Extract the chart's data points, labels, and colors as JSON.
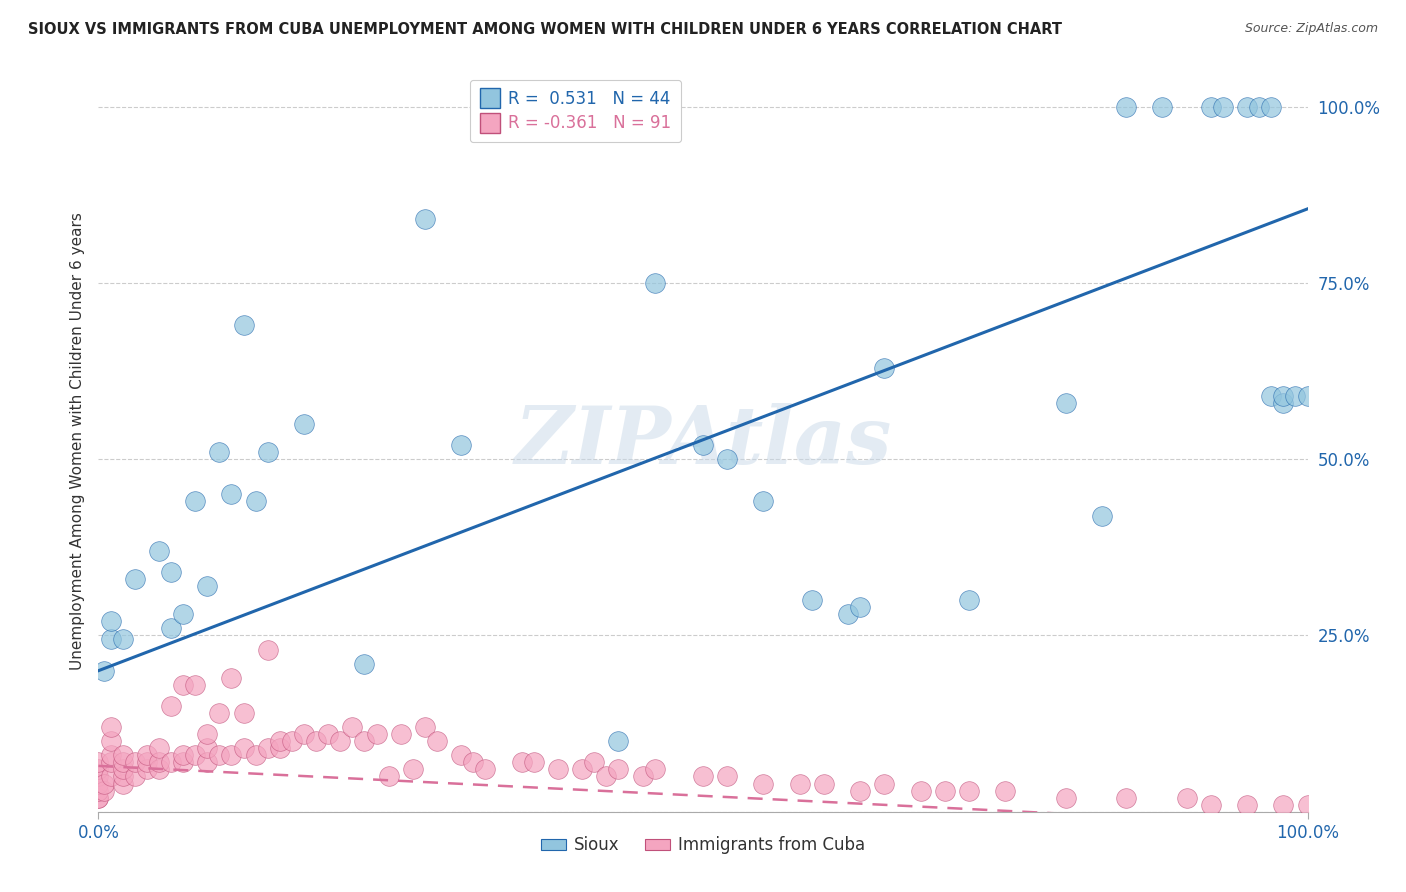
{
  "title": "SIOUX VS IMMIGRANTS FROM CUBA UNEMPLOYMENT AMONG WOMEN WITH CHILDREN UNDER 6 YEARS CORRELATION CHART",
  "source": "Source: ZipAtlas.com",
  "ylabel": "Unemployment Among Women with Children Under 6 years",
  "sioux_color": "#92c5de",
  "cuba_color": "#f4a5c0",
  "sioux_line_color": "#2166ac",
  "cuba_line_color": "#d9709a",
  "background_color": "#ffffff",
  "grid_color": "#cccccc",
  "watermark": "ZIPAtlas",
  "sioux_x": [
    0.005,
    0.01,
    0.01,
    0.02,
    0.03,
    0.05,
    0.06,
    0.06,
    0.07,
    0.08,
    0.09,
    0.1,
    0.11,
    0.12,
    0.13,
    0.14,
    0.17,
    0.22,
    0.27,
    0.3,
    0.43,
    0.46,
    0.5,
    0.52,
    0.55,
    0.59,
    0.62,
    0.63,
    0.65,
    0.72,
    0.8,
    0.83,
    0.85,
    0.88,
    0.92,
    0.93,
    0.95,
    0.96,
    0.97,
    0.97,
    0.98,
    0.98,
    0.99,
    1.0
  ],
  "sioux_y": [
    0.2,
    0.245,
    0.27,
    0.245,
    0.33,
    0.37,
    0.26,
    0.34,
    0.28,
    0.44,
    0.32,
    0.51,
    0.45,
    0.69,
    0.44,
    0.51,
    0.55,
    0.21,
    0.84,
    0.52,
    0.1,
    0.75,
    0.52,
    0.5,
    0.44,
    0.3,
    0.28,
    0.29,
    0.63,
    0.3,
    0.58,
    0.42,
    1.0,
    1.0,
    1.0,
    1.0,
    1.0,
    1.0,
    1.0,
    0.59,
    0.58,
    0.59,
    0.59,
    0.59
  ],
  "cuba_x": [
    0.0,
    0.0,
    0.0,
    0.0,
    0.0,
    0.0,
    0.0,
    0.005,
    0.005,
    0.01,
    0.01,
    0.01,
    0.01,
    0.01,
    0.02,
    0.02,
    0.02,
    0.02,
    0.02,
    0.03,
    0.03,
    0.04,
    0.04,
    0.04,
    0.05,
    0.05,
    0.05,
    0.06,
    0.06,
    0.07,
    0.07,
    0.07,
    0.08,
    0.08,
    0.09,
    0.09,
    0.09,
    0.1,
    0.1,
    0.11,
    0.11,
    0.12,
    0.12,
    0.13,
    0.14,
    0.14,
    0.15,
    0.15,
    0.16,
    0.17,
    0.18,
    0.19,
    0.2,
    0.21,
    0.22,
    0.23,
    0.24,
    0.25,
    0.26,
    0.27,
    0.28,
    0.3,
    0.31,
    0.32,
    0.35,
    0.36,
    0.38,
    0.4,
    0.41,
    0.42,
    0.43,
    0.45,
    0.46,
    0.5,
    0.52,
    0.55,
    0.58,
    0.6,
    0.63,
    0.65,
    0.68,
    0.7,
    0.72,
    0.75,
    0.8,
    0.85,
    0.9,
    0.92,
    0.95,
    0.98,
    1.0
  ],
  "cuba_y": [
    0.02,
    0.02,
    0.03,
    0.04,
    0.05,
    0.06,
    0.07,
    0.03,
    0.04,
    0.05,
    0.07,
    0.08,
    0.1,
    0.12,
    0.04,
    0.05,
    0.06,
    0.07,
    0.08,
    0.05,
    0.07,
    0.06,
    0.07,
    0.08,
    0.06,
    0.07,
    0.09,
    0.07,
    0.15,
    0.07,
    0.08,
    0.18,
    0.08,
    0.18,
    0.07,
    0.09,
    0.11,
    0.08,
    0.14,
    0.08,
    0.19,
    0.09,
    0.14,
    0.08,
    0.09,
    0.23,
    0.09,
    0.1,
    0.1,
    0.11,
    0.1,
    0.11,
    0.1,
    0.12,
    0.1,
    0.11,
    0.05,
    0.11,
    0.06,
    0.12,
    0.1,
    0.08,
    0.07,
    0.06,
    0.07,
    0.07,
    0.06,
    0.06,
    0.07,
    0.05,
    0.06,
    0.05,
    0.06,
    0.05,
    0.05,
    0.04,
    0.04,
    0.04,
    0.03,
    0.04,
    0.03,
    0.03,
    0.03,
    0.03,
    0.02,
    0.02,
    0.02,
    0.01,
    0.01,
    0.01,
    0.01
  ],
  "xlim": [
    0.0,
    1.0
  ],
  "ylim": [
    0.0,
    1.05
  ],
  "yticks": [
    0.0,
    0.25,
    0.5,
    0.75,
    1.0
  ],
  "ytick_labels": [
    "",
    "25.0%",
    "50.0%",
    "75.0%",
    "100.0%"
  ],
  "xtick_labels": [
    "0.0%",
    "100.0%"
  ],
  "sioux_line_start_y": 0.2,
  "sioux_line_end_y": 0.855,
  "cuba_line_start_y": 0.065,
  "cuba_line_end_y": -0.02
}
